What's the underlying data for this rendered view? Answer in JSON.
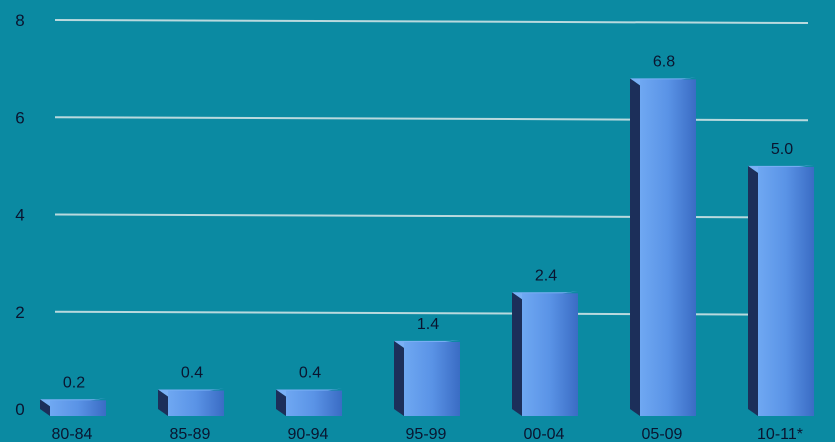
{
  "chart_data": {
    "type": "bar",
    "title": "",
    "xlabel": "",
    "ylabel": "",
    "categories": [
      "80-84",
      "85-89",
      "90-94",
      "95-99",
      "00-04",
      "05-09",
      "10-11*"
    ],
    "values": [
      0.2,
      0.4,
      0.4,
      1.4,
      2.4,
      6.8,
      5.0
    ],
    "data_labels": [
      "0.2",
      "0.4",
      "0.4",
      "1.4",
      "2.4",
      "6.8",
      "5.0"
    ],
    "yticks": [
      0,
      2,
      4,
      6,
      8
    ],
    "ylim": [
      0,
      8
    ],
    "grid": true,
    "legend": "none",
    "style": "3d-bars"
  },
  "colors": {
    "background": "#0b8aa2",
    "bar_front_top": "#5f9cf0",
    "bar_front_bottom": "#3e73cf",
    "bar_side": "#1c2f5a",
    "bar_top": "#7ab0f5",
    "gridline": "#b9d9de",
    "text": "#0a1530"
  }
}
